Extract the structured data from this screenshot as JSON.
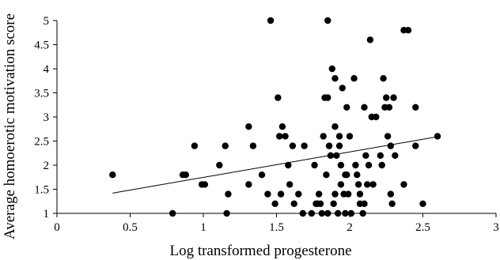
{
  "chart_data": {
    "type": "scatter",
    "title": "",
    "xlabel": "Log transformed progesterone",
    "ylabel": "Average homoerotic motivation score",
    "xlim": [
      0,
      3
    ],
    "ylim": [
      1,
      5
    ],
    "x_ticks": [
      "0",
      "0.5",
      "1",
      "1.5",
      "2",
      "2.5",
      "3"
    ],
    "y_ticks": [
      "1",
      "1.5",
      "2",
      "2.5",
      "3",
      "3.5",
      "4",
      "4.5",
      "5"
    ],
    "grid": false,
    "legend": "none",
    "series": [
      {
        "points": [
          [
            0.38,
            1.8
          ],
          [
            0.79,
            1.0
          ],
          [
            0.86,
            1.8
          ],
          [
            0.88,
            1.8
          ],
          [
            0.94,
            2.4
          ],
          [
            0.99,
            1.6
          ],
          [
            1.01,
            1.6
          ],
          [
            1.11,
            2.0
          ],
          [
            1.15,
            2.4
          ],
          [
            1.16,
            1.0
          ],
          [
            1.17,
            1.4
          ],
          [
            1.31,
            2.8
          ],
          [
            1.31,
            1.6
          ],
          [
            1.34,
            2.4
          ],
          [
            1.4,
            1.8
          ],
          [
            1.44,
            1.4
          ],
          [
            1.46,
            5.0
          ],
          [
            1.49,
            1.2
          ],
          [
            1.51,
            3.4
          ],
          [
            1.52,
            2.6
          ],
          [
            1.53,
            1.4
          ],
          [
            1.54,
            2.8
          ],
          [
            1.56,
            2.6
          ],
          [
            1.58,
            2.0
          ],
          [
            1.59,
            1.6
          ],
          [
            1.61,
            2.4
          ],
          [
            1.62,
            1.2
          ],
          [
            1.65,
            1.4
          ],
          [
            1.68,
            1.0
          ],
          [
            1.69,
            2.4
          ],
          [
            1.74,
            1.0
          ],
          [
            1.76,
            2.0
          ],
          [
            1.77,
            1.2
          ],
          [
            1.78,
            1.2
          ],
          [
            1.79,
            1.4
          ],
          [
            1.8,
            1.2
          ],
          [
            1.81,
            1.0
          ],
          [
            1.82,
            2.6
          ],
          [
            1.83,
            3.4
          ],
          [
            1.84,
            1.8
          ],
          [
            1.85,
            5.0
          ],
          [
            1.85,
            3.4
          ],
          [
            1.85,
            1.0
          ],
          [
            1.86,
            2.4
          ],
          [
            1.87,
            2.2
          ],
          [
            1.88,
            4.0
          ],
          [
            1.89,
            1.2
          ],
          [
            1.9,
            3.8
          ],
          [
            1.9,
            2.8
          ],
          [
            1.9,
            1.4
          ],
          [
            1.91,
            2.2
          ],
          [
            1.92,
            1.0
          ],
          [
            1.93,
            2.6
          ],
          [
            1.93,
            2.4
          ],
          [
            1.94,
            2.0
          ],
          [
            1.94,
            1.6
          ],
          [
            1.95,
            3.6
          ],
          [
            1.96,
            1.4
          ],
          [
            1.97,
            1.8
          ],
          [
            1.97,
            1.0
          ],
          [
            1.98,
            3.2
          ],
          [
            1.98,
            1.8
          ],
          [
            1.99,
            1.4
          ],
          [
            2.0,
            2.6
          ],
          [
            2.01,
            1.0
          ],
          [
            2.03,
            3.8
          ],
          [
            2.04,
            2.0
          ],
          [
            2.05,
            1.8
          ],
          [
            2.06,
            1.6
          ],
          [
            2.07,
            1.4
          ],
          [
            2.07,
            1.2
          ],
          [
            2.09,
            1.0
          ],
          [
            2.1,
            1.2
          ],
          [
            2.1,
            3.2
          ],
          [
            2.11,
            2.2
          ],
          [
            2.12,
            1.6
          ],
          [
            2.13,
            2.0
          ],
          [
            2.14,
            4.6
          ],
          [
            2.15,
            3.0
          ],
          [
            2.16,
            1.6
          ],
          [
            2.18,
            3.0
          ],
          [
            2.21,
            2.2
          ],
          [
            2.22,
            2.0
          ],
          [
            2.23,
            3.8
          ],
          [
            2.24,
            3.2
          ],
          [
            2.25,
            3.4
          ],
          [
            2.26,
            2.6
          ],
          [
            2.27,
            3.2
          ],
          [
            2.28,
            2.4
          ],
          [
            2.28,
            1.4
          ],
          [
            2.29,
            1.2
          ],
          [
            2.3,
            3.4
          ],
          [
            2.31,
            2.2
          ],
          [
            2.37,
            1.6
          ],
          [
            2.37,
            4.8
          ],
          [
            2.4,
            4.8
          ],
          [
            2.45,
            3.2
          ],
          [
            2.45,
            2.4
          ],
          [
            2.5,
            1.2
          ],
          [
            2.6,
            2.6
          ]
        ]
      }
    ],
    "trendline": {
      "type": "linear",
      "x": [
        0.38,
        2.6
      ],
      "y": [
        1.42,
        2.59
      ]
    }
  }
}
